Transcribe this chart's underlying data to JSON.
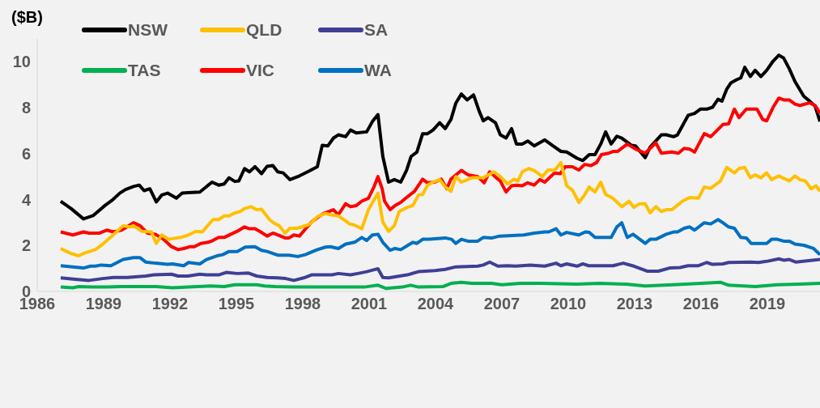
{
  "chart_data": {
    "type": "line",
    "ylabel": "($B)",
    "legend": "top left",
    "xlim": [
      1986,
      2021.38
    ],
    "xticks": [
      1986,
      1989,
      1992,
      1995,
      1998,
      2001,
      2004,
      2007,
      2010,
      2013,
      2016,
      2019
    ],
    "ylim": [
      0,
      11
    ],
    "yticks": [
      0,
      2,
      4,
      6,
      8,
      10
    ],
    "series": [
      {
        "name": "NSW",
        "color": "#000000",
        "x": [
          1987.06,
          1987.54,
          1988.09,
          1988.52,
          1989.07,
          1989.37,
          1989.73,
          1989.99,
          1990.35,
          1990.61,
          1990.83,
          1991.09,
          1991.38,
          1991.63,
          1991.89,
          1992.29,
          1992.55,
          1992.81,
          1993.35,
          1993.9,
          1994.2,
          1994.45,
          1994.67,
          1994.93,
          1995.11,
          1995.37,
          1995.59,
          1995.84,
          1996.14,
          1996.39,
          1996.65,
          1996.87,
          1997.12,
          1997.42,
          1997.85,
          1998.22,
          1998.66,
          1998.88,
          1999.14,
          1999.39,
          1999.61,
          1999.94,
          2000.16,
          2000.42,
          2000.89,
          2001.15,
          2001.4,
          2001.62,
          2001.88,
          2002.14,
          2002.43,
          2002.69,
          2002.9,
          2003.16,
          2003.42,
          2003.64,
          2003.89,
          2004.19,
          2004.44,
          2004.7,
          2004.92,
          2005.17,
          2005.43,
          2005.72,
          2005.98,
          2006.16,
          2006.38,
          2006.71,
          2006.93,
          2007.19,
          2007.44,
          2007.66,
          2007.92,
          2008.17,
          2008.46,
          2008.94,
          2009.31,
          2009.67,
          2009.93,
          2010.4,
          2010.66,
          2010.95,
          2011.21,
          2011.47,
          2011.69,
          2011.94,
          2012.2,
          2012.42,
          2012.86,
          2013.04,
          2013.48,
          2013.7,
          2014.21,
          2014.43,
          2014.76,
          2014.94,
          2015.24,
          2015.42,
          2015.71,
          2015.97,
          2016.26,
          2016.52,
          2016.77,
          2016.95,
          2017.17,
          2017.36,
          2017.61,
          2017.8,
          2017.98,
          2018.23,
          2018.45,
          2018.71,
          2018.97,
          2019.26,
          2019.52,
          2019.74,
          2019.99,
          2020.25,
          2020.65,
          2020.91,
          2021.16,
          2021.38
        ],
        "values": [
          3.93,
          3.6,
          3.16,
          3.3,
          3.75,
          3.96,
          4.28,
          4.44,
          4.57,
          4.63,
          4.39,
          4.47,
          3.9,
          4.2,
          4.28,
          4.06,
          4.28,
          4.3,
          4.33,
          4.76,
          4.63,
          4.68,
          4.95,
          4.79,
          4.81,
          5.35,
          5.21,
          5.43,
          5.13,
          5.45,
          5.48,
          5.21,
          5.16,
          4.87,
          5.03,
          5.21,
          5.43,
          6.36,
          6.34,
          6.68,
          6.82,
          6.74,
          7.03,
          6.9,
          6.95,
          7.4,
          7.7,
          5.88,
          4.76,
          4.87,
          4.76,
          5.27,
          5.88,
          6.07,
          6.87,
          6.87,
          7.03,
          7.35,
          7.09,
          7.49,
          8.2,
          8.6,
          8.34,
          8.56,
          7.84,
          7.43,
          7.57,
          7.35,
          6.82,
          6.68,
          7.09,
          6.42,
          6.42,
          6.55,
          6.34,
          6.6,
          6.34,
          6.1,
          6.07,
          5.8,
          5.7,
          5.96,
          5.96,
          6.42,
          6.95,
          6.42,
          6.76,
          6.68,
          6.36,
          6.34,
          5.83,
          6.28,
          6.82,
          6.82,
          6.74,
          6.82,
          7.35,
          7.67,
          7.75,
          7.94,
          7.94,
          8.02,
          8.37,
          8.29,
          8.82,
          9.09,
          9.22,
          9.3,
          9.76,
          9.36,
          9.63,
          9.36,
          9.63,
          10.03,
          10.29,
          10.16,
          9.7,
          9.14,
          8.5,
          8.29,
          8.07,
          7.4
        ]
      },
      {
        "name": "VIC",
        "color": "#ff0000",
        "x": [
          1987.06,
          1987.61,
          1988.09,
          1988.34,
          1988.82,
          1989.15,
          1989.44,
          1989.81,
          1990.06,
          1990.35,
          1990.65,
          1990.98,
          1991.34,
          1991.71,
          1992.07,
          1992.37,
          1992.62,
          1992.92,
          1993.1,
          1993.39,
          1993.72,
          1993.94,
          1994.2,
          1994.45,
          1994.75,
          1995.04,
          1995.37,
          1995.59,
          1995.84,
          1996.1,
          1996.39,
          1996.65,
          1996.87,
          1997.2,
          1997.38,
          1997.6,
          1997.85,
          1998.15,
          1998.4,
          1998.66,
          1998.95,
          1999.39,
          1999.61,
          1999.94,
          2000.16,
          2000.42,
          2000.67,
          2000.97,
          2001.22,
          2001.4,
          2001.59,
          2001.7,
          2001.95,
          2002.17,
          2002.43,
          2002.69,
          2003.05,
          2003.42,
          2003.64,
          2003.97,
          2004.26,
          2004.51,
          2004.7,
          2005.17,
          2005.47,
          2005.91,
          2006.2,
          2006.45,
          2006.75,
          2006.93,
          2007.19,
          2007.44,
          2007.66,
          2007.92,
          2008.17,
          2008.46,
          2008.72,
          2008.94,
          2009.38,
          2009.64,
          2009.86,
          2010.19,
          2010.48,
          2010.74,
          2011.03,
          2011.28,
          2011.5,
          2011.83,
          2012.05,
          2012.24,
          2012.67,
          2013.04,
          2013.48,
          2013.96,
          2014.21,
          2014.69,
          2014.98,
          2015.24,
          2015.49,
          2015.71,
          2016.15,
          2016.44,
          2016.99,
          2017.25,
          2017.51,
          2017.72,
          2018.05,
          2018.53,
          2018.79,
          2018.97,
          2019.26,
          2019.52,
          2019.74,
          2019.99,
          2020.25,
          2020.47,
          2020.91,
          2021.16,
          2021.38
        ],
        "values": [
          2.59,
          2.46,
          2.59,
          2.54,
          2.54,
          2.67,
          2.59,
          2.67,
          2.81,
          2.99,
          2.86,
          2.54,
          2.49,
          2.27,
          1.95,
          1.82,
          1.87,
          1.95,
          1.95,
          2.09,
          2.14,
          2.22,
          2.35,
          2.35,
          2.49,
          2.62,
          2.81,
          2.73,
          2.73,
          2.59,
          2.41,
          2.54,
          2.46,
          2.33,
          2.33,
          2.46,
          2.41,
          2.75,
          3.02,
          3.21,
          3.4,
          3.56,
          3.34,
          3.82,
          3.69,
          3.74,
          3.93,
          4.06,
          4.55,
          5.0,
          4.47,
          3.93,
          3.56,
          3.74,
          3.88,
          4.09,
          4.36,
          4.89,
          4.73,
          4.76,
          4.89,
          4.47,
          4.89,
          5.27,
          5.08,
          5.0,
          4.73,
          5.21,
          4.95,
          4.81,
          4.33,
          4.6,
          4.63,
          4.6,
          4.73,
          4.63,
          4.87,
          4.76,
          5.16,
          5.13,
          5.43,
          5.43,
          5.29,
          5.53,
          5.48,
          5.61,
          5.96,
          6.02,
          6.1,
          6.1,
          6.42,
          6.2,
          6.02,
          6.47,
          6.02,
          6.07,
          6.02,
          6.23,
          6.2,
          6.07,
          6.87,
          6.74,
          7.27,
          7.3,
          7.94,
          7.57,
          7.94,
          7.94,
          7.49,
          7.43,
          8.02,
          8.42,
          8.34,
          8.34,
          8.16,
          8.1,
          8.21,
          8.1,
          7.75
        ]
      },
      {
        "name": "QLD",
        "color": "#ffc000",
        "x": [
          1987.06,
          1987.5,
          1987.87,
          1988.16,
          1988.63,
          1988.96,
          1989.37,
          1989.88,
          1990.17,
          1990.35,
          1990.72,
          1991.16,
          1991.38,
          1991.63,
          1991.93,
          1992.48,
          1992.84,
          1993.17,
          1993.46,
          1993.94,
          1994.2,
          1994.45,
          1994.67,
          1994.93,
          1995.18,
          1995.37,
          1995.66,
          1995.92,
          1996.14,
          1996.5,
          1996.68,
          1996.94,
          1997.2,
          1997.42,
          1997.75,
          1998.22,
          1998.4,
          1998.66,
          1999.03,
          1999.25,
          1999.61,
          1999.94,
          2000.12,
          2000.34,
          2000.67,
          2000.97,
          2001.4,
          2001.62,
          2001.88,
          2002.14,
          2002.36,
          2002.72,
          2002.98,
          2003.23,
          2003.42,
          2003.64,
          2003.89,
          2004.19,
          2004.44,
          2004.7,
          2004.92,
          2005.17,
          2005.65,
          2006.16,
          2006.64,
          2006.93,
          2007.26,
          2007.55,
          2007.73,
          2007.92,
          2008.21,
          2008.46,
          2008.83,
          2009.09,
          2009.38,
          2009.67,
          2009.93,
          2010.19,
          2010.48,
          2010.74,
          2010.95,
          2011.21,
          2011.47,
          2011.69,
          2012.02,
          2012.42,
          2012.75,
          2012.97,
          2013.22,
          2013.48,
          2013.7,
          2013.96,
          2014.21,
          2014.43,
          2014.69,
          2015.16,
          2015.49,
          2015.89,
          2016.15,
          2016.44,
          2016.88,
          2017.17,
          2017.51,
          2017.72,
          2017.98,
          2018.23,
          2018.45,
          2018.71,
          2018.97,
          2019.19,
          2019.52,
          2019.99,
          2020.25,
          2020.47,
          2020.72,
          2020.98,
          2021.2,
          2021.38
        ],
        "values": [
          1.87,
          1.66,
          1.55,
          1.68,
          1.82,
          2.06,
          2.41,
          2.86,
          2.81,
          2.86,
          2.62,
          2.59,
          2.09,
          2.46,
          2.27,
          2.35,
          2.46,
          2.62,
          2.59,
          3.13,
          3.13,
          3.29,
          3.29,
          3.42,
          3.48,
          3.61,
          3.69,
          3.56,
          3.58,
          3.13,
          2.99,
          2.86,
          2.54,
          2.75,
          2.75,
          2.89,
          2.99,
          3.26,
          3.4,
          3.34,
          3.29,
          3.07,
          2.94,
          2.89,
          2.73,
          3.56,
          4.28,
          3.02,
          2.62,
          2.86,
          3.48,
          3.66,
          3.74,
          4.2,
          4.22,
          4.63,
          4.76,
          4.87,
          4.55,
          4.36,
          5.0,
          4.76,
          4.95,
          4.95,
          5.21,
          5.0,
          4.68,
          4.89,
          4.81,
          5.21,
          5.35,
          5.27,
          5.0,
          5.29,
          5.27,
          5.61,
          4.6,
          4.41,
          3.88,
          4.2,
          4.55,
          4.33,
          4.76,
          4.22,
          4.06,
          3.69,
          3.93,
          3.66,
          3.82,
          3.82,
          3.42,
          3.69,
          3.48,
          3.56,
          3.56,
          3.93,
          4.09,
          4.06,
          4.55,
          4.49,
          4.81,
          5.4,
          5.16,
          5.35,
          5.4,
          4.95,
          5.08,
          4.95,
          5.16,
          4.87,
          5.03,
          4.81,
          5.03,
          4.87,
          4.81,
          4.47,
          4.6,
          4.36
        ]
      },
      {
        "name": "SA",
        "color": "#3f3f96",
        "x": [
          1987.06,
          1987.72,
          1988.34,
          1988.96,
          1989.44,
          1990.06,
          1990.9,
          1991.27,
          1992.07,
          1992.37,
          1992.81,
          1993.35,
          1993.65,
          1994.2,
          1994.56,
          1995.04,
          1995.55,
          1995.92,
          1996.39,
          1996.87,
          1997.23,
          1997.6,
          1998.04,
          1998.4,
          1999.32,
          1999.61,
          2000.16,
          2000.49,
          2000.89,
          2001.4,
          2001.62,
          2001.88,
          2002.72,
          2003.23,
          2003.97,
          2004.44,
          2004.92,
          2005.91,
          2006.16,
          2006.45,
          2006.82,
          2007.26,
          2007.62,
          2008.28,
          2008.94,
          2009.45,
          2009.67,
          2009.93,
          2010.4,
          2010.66,
          2010.92,
          2012.02,
          2012.49,
          2012.97,
          2013.59,
          2014.07,
          2014.58,
          2015.05,
          2015.42,
          2015.89,
          2016.26,
          2016.52,
          2016.99,
          2017.25,
          2018.23,
          2018.6,
          2018.97,
          2019.52,
          2019.74,
          2019.99,
          2020.28,
          2021.38
        ],
        "values": [
          0.59,
          0.53,
          0.48,
          0.56,
          0.61,
          0.61,
          0.67,
          0.72,
          0.75,
          0.67,
          0.67,
          0.75,
          0.72,
          0.72,
          0.83,
          0.78,
          0.8,
          0.67,
          0.61,
          0.59,
          0.56,
          0.48,
          0.59,
          0.72,
          0.72,
          0.78,
          0.72,
          0.78,
          0.86,
          0.99,
          0.61,
          0.59,
          0.72,
          0.86,
          0.91,
          0.96,
          1.07,
          1.1,
          1.15,
          1.28,
          1.1,
          1.12,
          1.1,
          1.15,
          1.1,
          1.23,
          1.12,
          1.2,
          1.1,
          1.2,
          1.12,
          1.12,
          1.23,
          1.1,
          0.88,
          0.88,
          1.02,
          1.04,
          1.12,
          1.12,
          1.26,
          1.18,
          1.2,
          1.26,
          1.28,
          1.26,
          1.31,
          1.42,
          1.36,
          1.39,
          1.28,
          1.39
        ]
      },
      {
        "name": "WA",
        "color": "#0070c0",
        "x": [
          1987.06,
          1987.61,
          1988.09,
          1988.41,
          1988.63,
          1988.89,
          1989.33,
          1989.88,
          1990.35,
          1990.65,
          1990.9,
          1991.34,
          1991.89,
          1992.11,
          1992.62,
          1992.84,
          1993.35,
          1993.65,
          1994.12,
          1994.38,
          1994.67,
          1995.04,
          1995.4,
          1995.84,
          1996.14,
          1996.39,
          1996.87,
          1997.38,
          1997.78,
          1998.11,
          1998.66,
          1999.03,
          1999.25,
          1999.61,
          1999.94,
          2000.34,
          2000.67,
          2000.89,
          2001.15,
          2001.4,
          2001.62,
          2001.95,
          2002.17,
          2002.43,
          2002.98,
          2003.16,
          2003.42,
          2003.71,
          2004.44,
          2004.73,
          2004.92,
          2005.17,
          2005.47,
          2005.91,
          2006.16,
          2006.56,
          2006.89,
          2007.99,
          2008.46,
          2008.94,
          2009.12,
          2009.45,
          2009.67,
          2009.93,
          2010.48,
          2010.77,
          2010.95,
          2011.21,
          2011.69,
          2011.94,
          2012.2,
          2012.42,
          2012.67,
          2012.93,
          2013.48,
          2013.7,
          2013.96,
          2014.43,
          2014.76,
          2014.94,
          2015.24,
          2015.49,
          2015.71,
          2016.15,
          2016.44,
          2016.77,
          2016.99,
          2017.25,
          2017.51,
          2017.8,
          2018.05,
          2018.27,
          2018.97,
          2019.19,
          2019.45,
          2019.74,
          2019.99,
          2020.25,
          2020.65,
          2021.09,
          2021.38
        ],
        "values": [
          1.12,
          1.07,
          1.02,
          1.1,
          1.1,
          1.15,
          1.12,
          1.39,
          1.47,
          1.47,
          1.28,
          1.23,
          1.18,
          1.2,
          1.12,
          1.26,
          1.2,
          1.39,
          1.55,
          1.6,
          1.74,
          1.74,
          1.93,
          1.95,
          1.79,
          1.74,
          1.58,
          1.58,
          1.52,
          1.6,
          1.82,
          1.93,
          1.95,
          1.87,
          2.06,
          2.14,
          2.35,
          2.22,
          2.46,
          2.49,
          2.14,
          1.79,
          1.87,
          1.82,
          2.14,
          2.09,
          2.27,
          2.27,
          2.33,
          2.27,
          2.09,
          2.27,
          2.19,
          2.19,
          2.35,
          2.33,
          2.41,
          2.46,
          2.54,
          2.59,
          2.59,
          2.73,
          2.46,
          2.57,
          2.46,
          2.59,
          2.57,
          2.35,
          2.35,
          2.35,
          2.81,
          2.99,
          2.35,
          2.49,
          2.09,
          2.27,
          2.27,
          2.49,
          2.59,
          2.59,
          2.75,
          2.81,
          2.67,
          2.99,
          2.94,
          3.13,
          2.99,
          2.81,
          2.75,
          2.35,
          2.33,
          2.09,
          2.09,
          2.27,
          2.27,
          2.19,
          2.19,
          2.06,
          2.01,
          1.87,
          1.6
        ]
      },
      {
        "name": "TAS",
        "color": "#00b050",
        "x": [
          1987.06,
          1987.61,
          1987.87,
          1988.45,
          1989.18,
          1989.81,
          1991.38,
          1992.11,
          1992.84,
          1993.83,
          1994.45,
          1994.93,
          1995.92,
          1996.28,
          1996.76,
          1997.6,
          1998.84,
          2000.78,
          2001.4,
          2001.77,
          2002.5,
          2002.87,
          2003.23,
          2004.33,
          2004.7,
          2005.17,
          2005.65,
          2006.53,
          2007.0,
          2007.84,
          2008.76,
          2010.4,
          2011.39,
          2012.6,
          2013.48,
          2014.32,
          2015.31,
          2016.88,
          2017.25,
          2018.45,
          2019.45,
          2020.43,
          2021.38
        ],
        "values": [
          0.19,
          0.16,
          0.21,
          0.19,
          0.19,
          0.21,
          0.21,
          0.16,
          0.19,
          0.24,
          0.21,
          0.29,
          0.29,
          0.24,
          0.21,
          0.19,
          0.19,
          0.19,
          0.27,
          0.13,
          0.19,
          0.27,
          0.19,
          0.21,
          0.35,
          0.4,
          0.35,
          0.35,
          0.29,
          0.35,
          0.35,
          0.32,
          0.35,
          0.32,
          0.24,
          0.27,
          0.32,
          0.4,
          0.27,
          0.21,
          0.29,
          0.32,
          0.35
        ]
      }
    ]
  }
}
